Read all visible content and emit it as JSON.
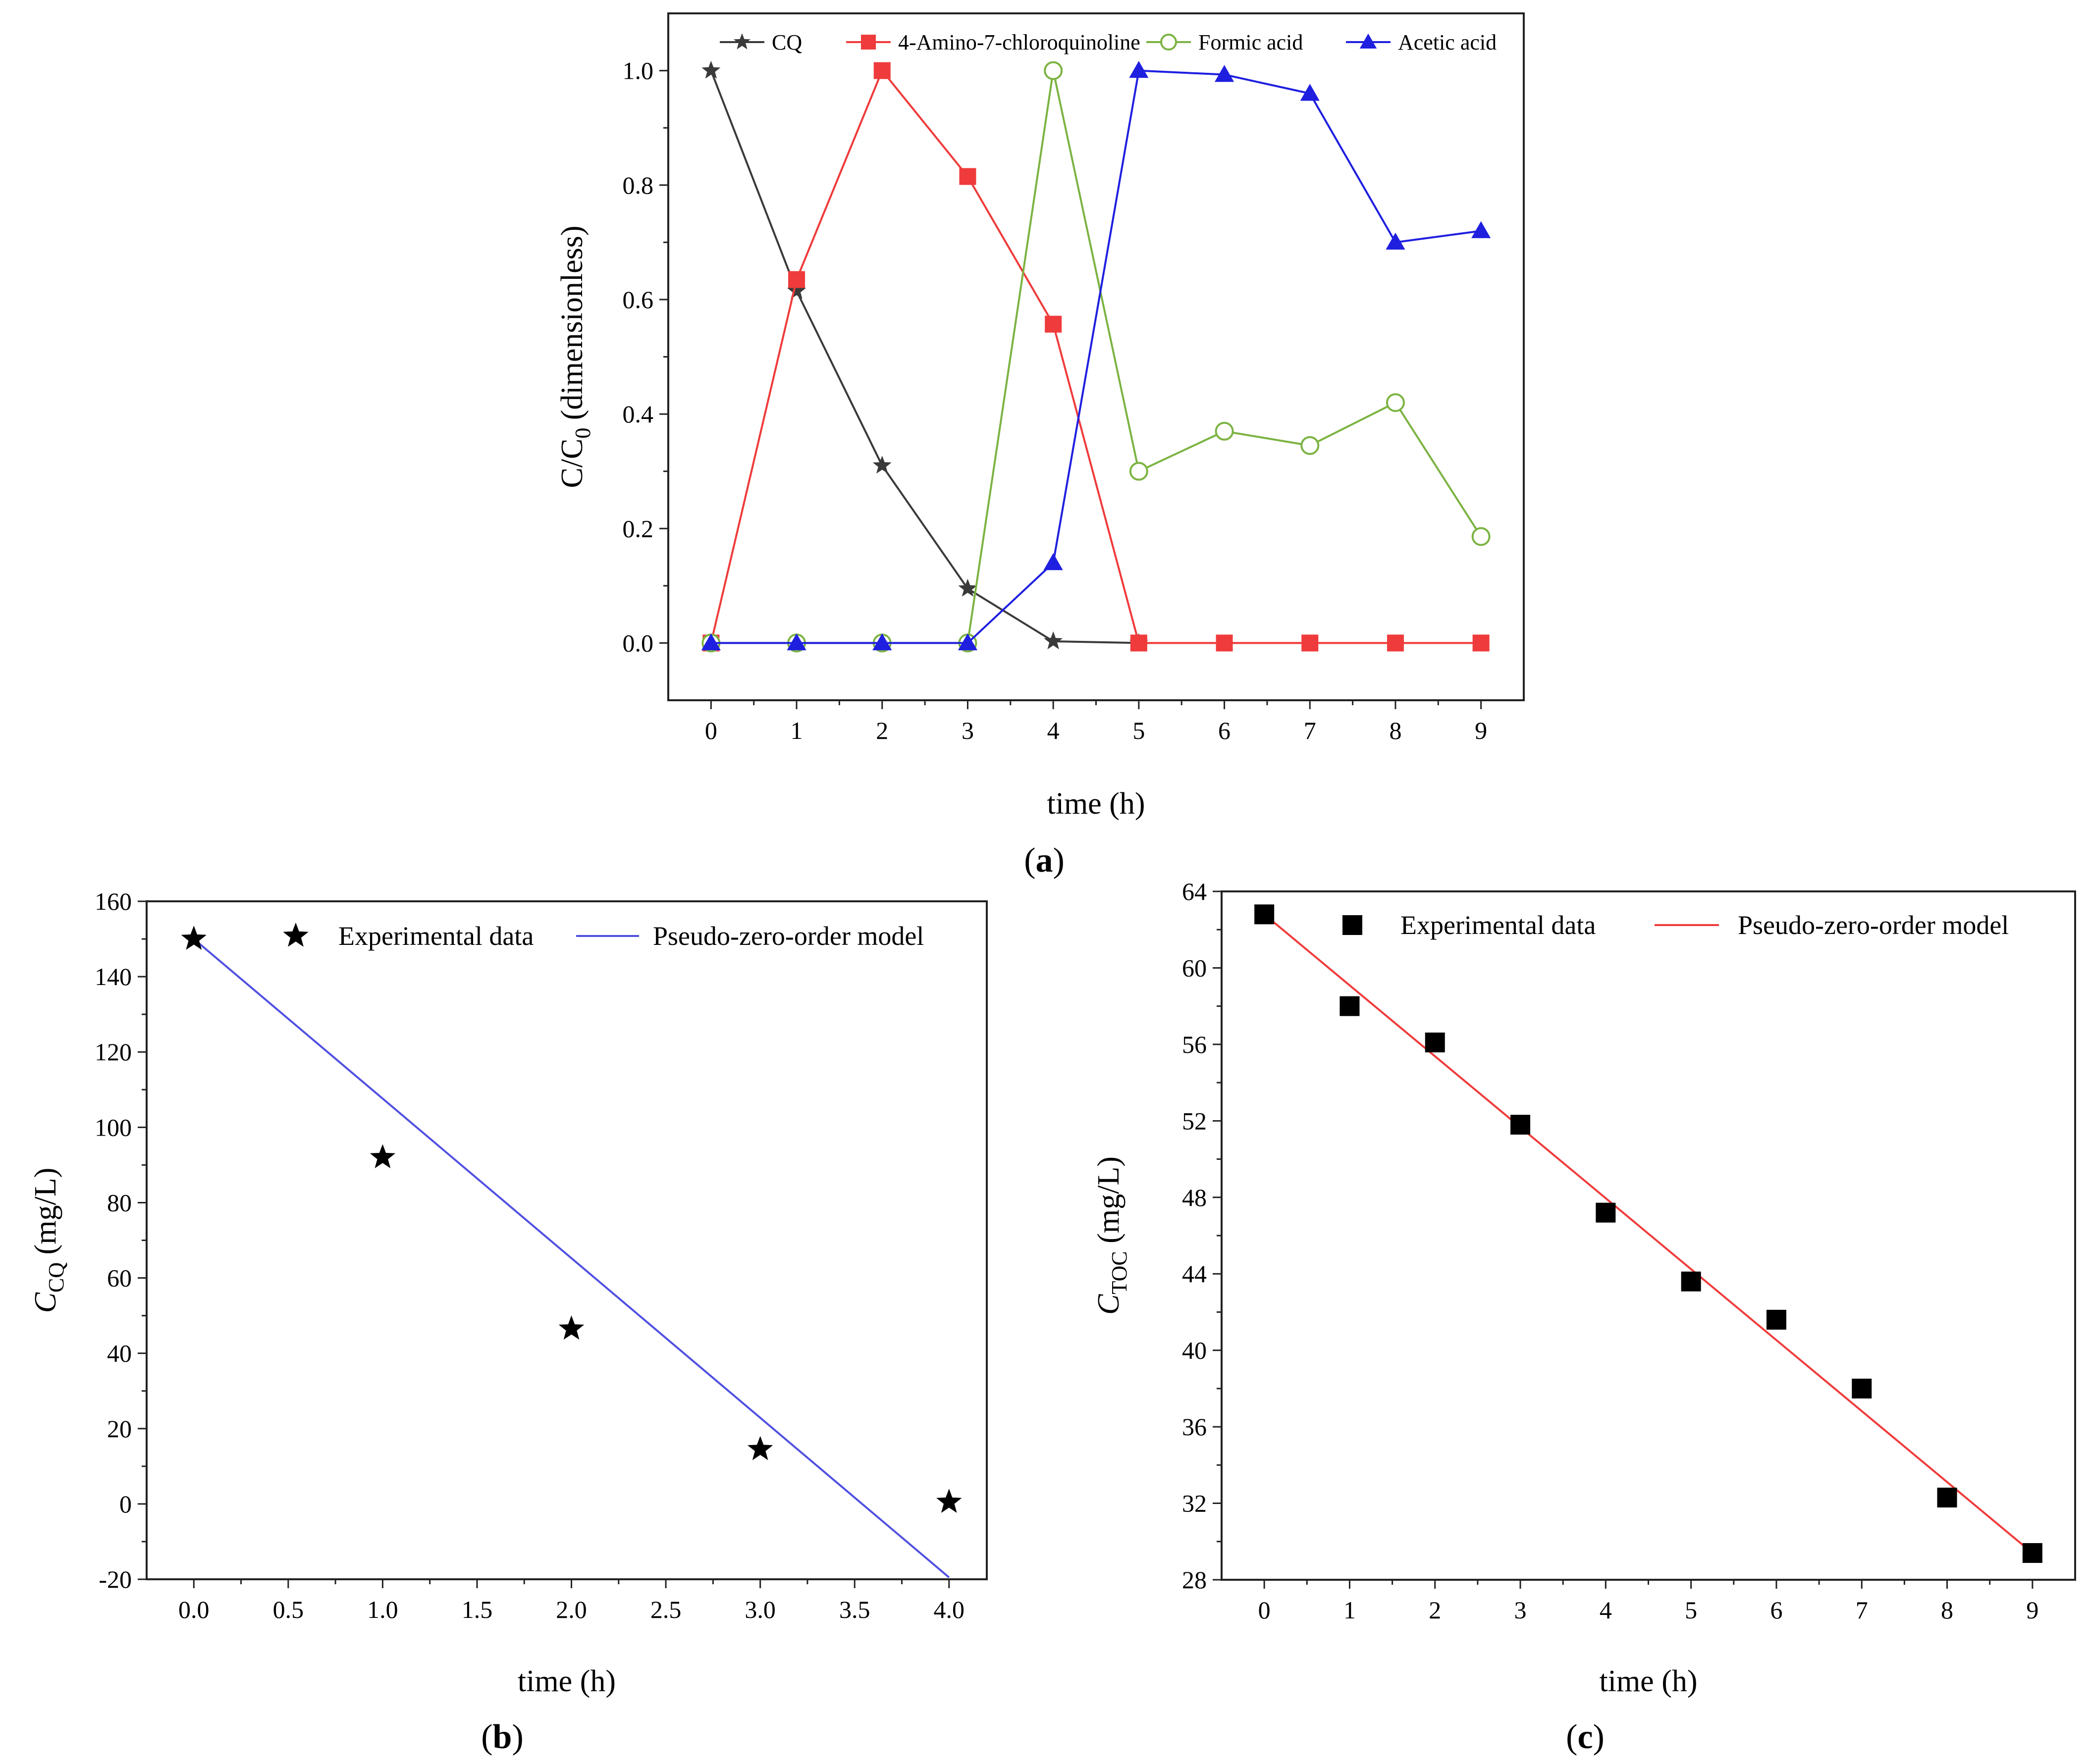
{
  "chart_data": [
    {
      "id": "a",
      "type": "line",
      "caption": "a",
      "xlabel": "time (h)",
      "ylabel_main": "C/C",
      "ylabel_sub": "0",
      "ylabel_tail": " (dimensionless)",
      "xlim": [
        -0.5,
        9.5
      ],
      "ylim": [
        -0.1,
        1.1
      ],
      "xticks": [
        0,
        1,
        2,
        3,
        4,
        5,
        6,
        7,
        8,
        9
      ],
      "yticks": [
        0.0,
        0.2,
        0.4,
        0.6,
        0.8,
        1.0
      ],
      "ytick_labels": [
        "0.0",
        "0.2",
        "0.4",
        "0.6",
        "0.8",
        "1.0"
      ],
      "x": [
        0,
        1,
        2,
        3,
        4,
        5,
        6,
        7,
        8,
        9
      ],
      "series": [
        {
          "name": "CQ",
          "marker": "star",
          "color": "#3a3a3a",
          "values": [
            1.0,
            0.615,
            0.31,
            0.095,
            0.003,
            0.0,
            null,
            null,
            null,
            null
          ]
        },
        {
          "name": "4-Amino-7-chloroquinoline",
          "marker": "square",
          "color": "#ef3b3b",
          "values": [
            0.0,
            0.635,
            1.0,
            0.815,
            0.557,
            0.0,
            0.0,
            0.0,
            0.0,
            0.0
          ]
        },
        {
          "name": "Formic acid",
          "marker": "circle-open",
          "color": "#7cb342",
          "values": [
            0.0,
            0.0,
            0.0,
            0.0,
            1.0,
            0.3,
            0.37,
            0.345,
            0.42,
            0.186
          ]
        },
        {
          "name": "Acetic acid",
          "marker": "triangle",
          "color": "#1f1fe0",
          "values": [
            0.0,
            0.0,
            0.0,
            0.0,
            0.14,
            1.0,
            0.993,
            0.96,
            0.7,
            0.72
          ]
        }
      ]
    },
    {
      "id": "b",
      "type": "scatter",
      "caption": "b",
      "xlabel": "time (h)",
      "ylabel_main": "C",
      "ylabel_sub": "CQ",
      "ylabel_tail": " (mg/L)",
      "xlim": [
        -0.25,
        4.2
      ],
      "ylim": [
        -20,
        160
      ],
      "xticks": [
        0.0,
        0.5,
        1.0,
        1.5,
        2.0,
        2.5,
        3.0,
        3.5,
        4.0
      ],
      "xtick_labels": [
        "0.0",
        "0.5",
        "1.0",
        "1.5",
        "2.0",
        "2.5",
        "3.0",
        "3.5",
        "4.0"
      ],
      "yticks": [
        -20,
        0,
        20,
        40,
        60,
        80,
        100,
        120,
        140,
        160
      ],
      "ytick_labels": [
        "-20",
        "0",
        "20",
        "40",
        "60",
        "80",
        "100",
        "120",
        "140",
        "160"
      ],
      "x": [
        0,
        1,
        2,
        3,
        4
      ],
      "experimental": {
        "name": "Experimental data",
        "marker": "star",
        "color": "#000000",
        "values": [
          150,
          92,
          46.5,
          14.5,
          0.5
        ]
      },
      "model": {
        "name": "Pseudo-zero-order model",
        "color": "#5050e0",
        "x": [
          0,
          4
        ],
        "values": [
          150,
          -19.5
        ]
      }
    },
    {
      "id": "c",
      "type": "scatter",
      "caption": "c",
      "xlabel": "time (h)",
      "ylabel_main": "C",
      "ylabel_sub": "TOC",
      "ylabel_tail": " (mg/L)",
      "xlim": [
        -0.5,
        9.5
      ],
      "ylim": [
        28,
        64
      ],
      "xticks": [
        0,
        1,
        2,
        3,
        4,
        5,
        6,
        7,
        8,
        9
      ],
      "yticks": [
        28,
        32,
        36,
        40,
        44,
        48,
        52,
        56,
        60,
        64
      ],
      "ytick_labels": [
        "28",
        "32",
        "36",
        "40",
        "44",
        "48",
        "52",
        "56",
        "60",
        "64"
      ],
      "x": [
        0,
        1,
        2,
        3,
        4,
        5,
        6,
        7,
        8,
        9
      ],
      "experimental": {
        "name": "Experimental data",
        "marker": "square",
        "color": "#000000",
        "values": [
          62.8,
          58.0,
          56.1,
          51.8,
          47.2,
          43.6,
          41.6,
          38.0,
          32.3,
          29.4
        ]
      },
      "model": {
        "name": "Pseudo-zero-order model",
        "color": "#ef3b3b",
        "x": [
          0,
          9
        ],
        "values": [
          62.8,
          29.4
        ]
      }
    }
  ]
}
